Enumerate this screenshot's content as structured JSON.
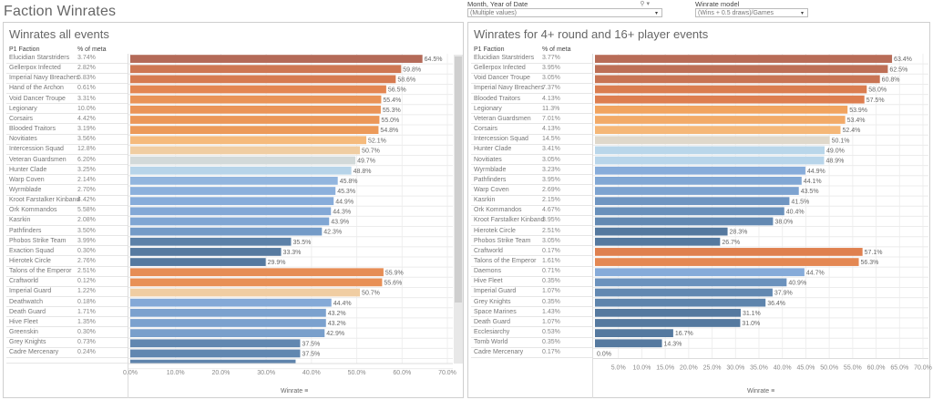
{
  "dashboard": {
    "title": "Faction Winrates",
    "filters": [
      {
        "label": "Month, Year of Date",
        "value": "(Multiple values)",
        "funnel_icon": "filter-icon",
        "caret": "▾"
      },
      {
        "label": "Winrate model",
        "value": "(Wins + 0.5 draws)/Games",
        "caret": "▾"
      }
    ]
  },
  "left": {
    "title": "Winrates all events",
    "col_faction": "P1 Faction",
    "col_meta": "% of meta",
    "axis_title": "Winrate",
    "sort_icon": "sort-icon"
  },
  "right": {
    "title": "Winrates for 4+ round and 16+ player events",
    "col_faction": "P1 Faction",
    "col_meta": "% of meta",
    "axis_title": "Winrate",
    "sort_icon": "sort-icon"
  },
  "chart_data": [
    {
      "type": "bar",
      "orientation": "horizontal",
      "title": "Winrates all events",
      "xlabel": "Winrate",
      "xlim": [
        0,
        70
      ],
      "xticks": [
        "0.0%",
        "10.0%",
        "20.0%",
        "30.0%",
        "40.0%",
        "50.0%",
        "60.0%",
        "70.0%"
      ],
      "xtick_values": [
        0,
        10,
        20,
        30,
        40,
        50,
        60,
        70
      ],
      "grid": true,
      "color_scale": "diverging orange-blue centered at 50%",
      "categories": [
        "Elucidian Starstriders",
        "Gellerpox Infected",
        "Imperial Navy Breachers",
        "Hand of the Archon",
        "Void Dancer Troupe",
        "Legionary",
        "Corsairs",
        "Blooded Traitors",
        "Novitiates",
        "Intercession Squad",
        "Veteran Guardsmen",
        "Hunter Clade",
        "Warp Coven",
        "Wyrmblade",
        "Kroot Farstalker Kinband",
        "Ork Kommandos",
        "Kasrkin",
        "Pathfinders",
        "Phobos Strike Team",
        "Exaction Squad",
        "Hierotek Circle",
        "Talons of the Emperor",
        "Craftworld",
        "Imperial Guard",
        "Deathwatch",
        "Death Guard",
        "Hive Fleet",
        "Greenskin",
        "Grey Knights",
        "Cadre Mercenary",
        "(partially hidden)"
      ],
      "meta_pct": [
        "3.74%",
        "2.82%",
        "5.83%",
        "0.61%",
        "3.31%",
        "10.0%",
        "4.42%",
        "3.19%",
        "3.56%",
        "12.8%",
        "6.20%",
        "3.25%",
        "2.14%",
        "2.70%",
        "4.42%",
        "5.58%",
        "2.08%",
        "3.50%",
        "3.99%",
        "0.30%",
        "2.76%",
        "2.51%",
        "0.12%",
        "1.22%",
        "0.18%",
        "1.71%",
        "1.35%",
        "0.30%",
        "0.73%",
        "0.24%",
        ""
      ],
      "values": [
        64.5,
        59.8,
        58.6,
        56.5,
        55.4,
        55.3,
        55.0,
        54.8,
        52.1,
        50.7,
        49.7,
        48.8,
        45.8,
        45.3,
        44.9,
        44.3,
        43.9,
        42.3,
        35.5,
        33.3,
        29.9,
        55.9,
        55.6,
        50.7,
        44.4,
        43.2,
        43.2,
        42.9,
        37.5,
        37.5,
        36.5
      ],
      "labels": [
        "64.5%",
        "59.8%",
        "58.6%",
        "56.5%",
        "55.4%",
        "55.3%",
        "55.0%",
        "54.8%",
        "52.1%",
        "50.7%",
        "49.7%",
        "48.8%",
        "45.8%",
        "45.3%",
        "44.9%",
        "44.3%",
        "43.9%",
        "42.3%",
        "35.5%",
        "33.3%",
        "29.9%",
        "55.9%",
        "55.6%",
        "50.7%",
        "44.4%",
        "43.2%",
        "43.2%",
        "42.9%",
        "37.5%",
        "37.5%",
        ""
      ]
    },
    {
      "type": "bar",
      "orientation": "horizontal",
      "title": "Winrates for 4+ round and 16+ player events",
      "xlabel": "Winrate",
      "xlim": [
        0,
        70
      ],
      "xticks": [
        "5.0%",
        "10.0%",
        "15.0%",
        "20.0%",
        "25.0%",
        "30.0%",
        "35.0%",
        "40.0%",
        "45.0%",
        "50.0%",
        "55.0%",
        "60.0%",
        "65.0%",
        "70.0%"
      ],
      "xtick_values": [
        5,
        10,
        15,
        20,
        25,
        30,
        35,
        40,
        45,
        50,
        55,
        60,
        65,
        70
      ],
      "grid": true,
      "color_scale": "diverging orange-blue centered at 50%",
      "categories": [
        "Elucidian Starstriders",
        "Gellerpox Infected",
        "Void Dancer Troupe",
        "Imperial Navy Breachers",
        "Blooded Traitors",
        "Legionary",
        "Veteran Guardsmen",
        "Corsairs",
        "Intercession Squad",
        "Hunter Clade",
        "Novitiates",
        "Wyrmblade",
        "Pathfinders",
        "Warp Coven",
        "Kasrkin",
        "Ork Kommandos",
        "Kroot Farstalker Kinband",
        "Hierotek Circle",
        "Phobos Strike Team",
        "Craftworld",
        "Talons of the Emperor",
        "Daemons",
        "Hive Fleet",
        "Imperial Guard",
        "Grey Knights",
        "Space Marines",
        "Death Guard",
        "Ecclesiarchy",
        "Tomb World",
        "Cadre Mercenary"
      ],
      "meta_pct": [
        "3.77%",
        "3.95%",
        "3.05%",
        "7.37%",
        "4.13%",
        "11.3%",
        "7.01%",
        "4.13%",
        "14.5%",
        "3.41%",
        "3.05%",
        "3.23%",
        "3.95%",
        "2.69%",
        "2.15%",
        "4.67%",
        "3.95%",
        "2.51%",
        "3.05%",
        "0.17%",
        "1.61%",
        "0.71%",
        "0.35%",
        "1.07%",
        "0.35%",
        "1.43%",
        "1.07%",
        "0.53%",
        "0.35%",
        "0.17%"
      ],
      "values": [
        63.4,
        62.5,
        60.8,
        58.0,
        57.5,
        53.9,
        53.4,
        52.4,
        50.1,
        49.0,
        48.9,
        44.9,
        44.1,
        43.5,
        41.5,
        40.4,
        38.0,
        28.3,
        26.7,
        57.1,
        56.3,
        44.7,
        40.9,
        37.9,
        36.4,
        31.1,
        31.0,
        16.7,
        14.3,
        0.0
      ],
      "labels": [
        "63.4%",
        "62.5%",
        "60.8%",
        "58.0%",
        "57.5%",
        "53.9%",
        "53.4%",
        "52.4%",
        "50.1%",
        "49.0%",
        "48.9%",
        "44.9%",
        "44.1%",
        "43.5%",
        "41.5%",
        "40.4%",
        "38.0%",
        "28.3%",
        "26.7%",
        "57.1%",
        "56.3%",
        "44.7%",
        "40.9%",
        "37.9%",
        "36.4%",
        "31.1%",
        "31.0%",
        "16.7%",
        "14.3%",
        "0.0%"
      ]
    }
  ]
}
